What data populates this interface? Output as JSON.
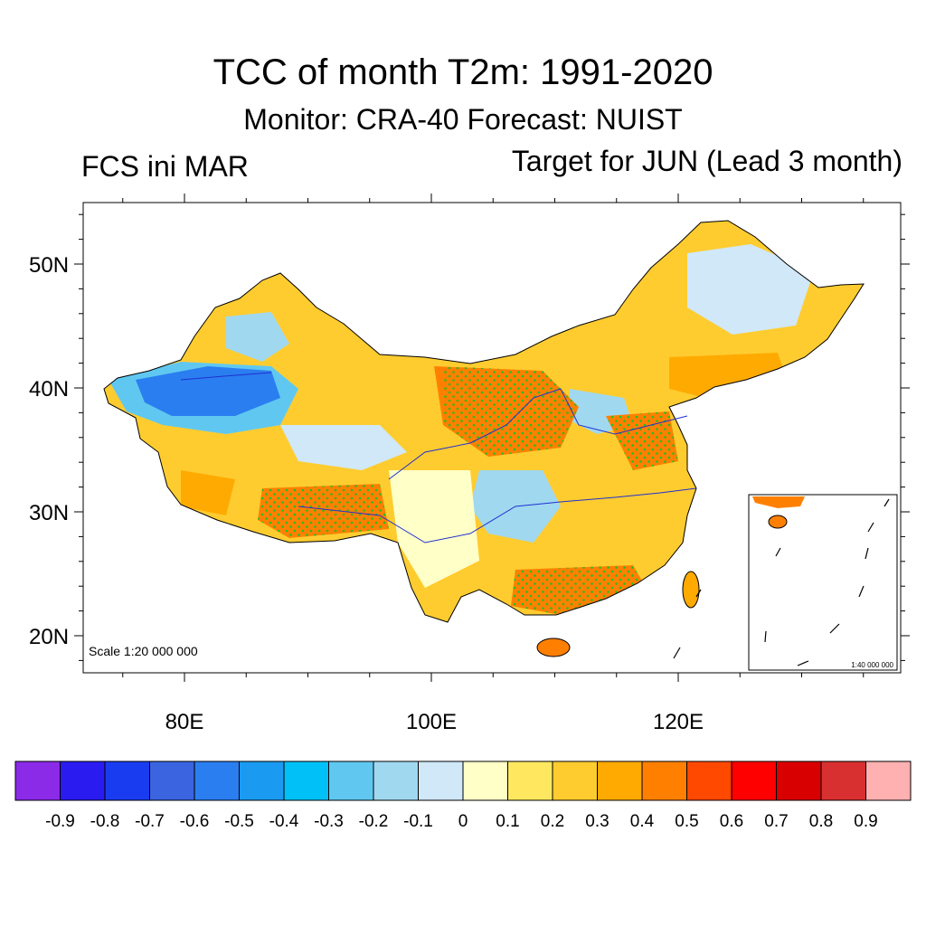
{
  "title": "TCC of month T2m: 1991-2020",
  "subtitle": "Monitor: CRA-40   Forecast: NUIST",
  "left_label": "FCS ini MAR",
  "right_label": "Target for JUN (Lead 3 month)",
  "map": {
    "scale_text": "Scale 1:20 000 000",
    "inset_scale_text": "1:40 000 000",
    "lat_labels": [
      "50N",
      "40N",
      "30N",
      "20N"
    ],
    "lon_labels": [
      "80E",
      "100E",
      "120E"
    ],
    "lat_values": [
      50,
      40,
      30,
      20
    ],
    "lon_values": [
      80,
      100,
      120
    ]
  },
  "colorbar": {
    "labels": [
      "-0.9",
      "-0.8",
      "-0.7",
      "-0.6",
      "-0.5",
      "-0.4",
      "-0.3",
      "-0.2",
      "-0.1",
      "0",
      "0.1",
      "0.2",
      "0.3",
      "0.4",
      "0.5",
      "0.6",
      "0.7",
      "0.8",
      "0.9"
    ],
    "colors": [
      "#8b2be8",
      "#2a1cf0",
      "#1a3cf0",
      "#3b64e0",
      "#2a7ef0",
      "#1a9af0",
      "#00c0f8",
      "#60c8f0",
      "#a0d8f0",
      "#d0e8f8",
      "#ffffc8",
      "#ffe860",
      "#ffcc30",
      "#ffaa00",
      "#ff8000",
      "#ff4800",
      "#ff0000",
      "#d80000",
      "#d83030",
      "#ffb0b0"
    ]
  }
}
